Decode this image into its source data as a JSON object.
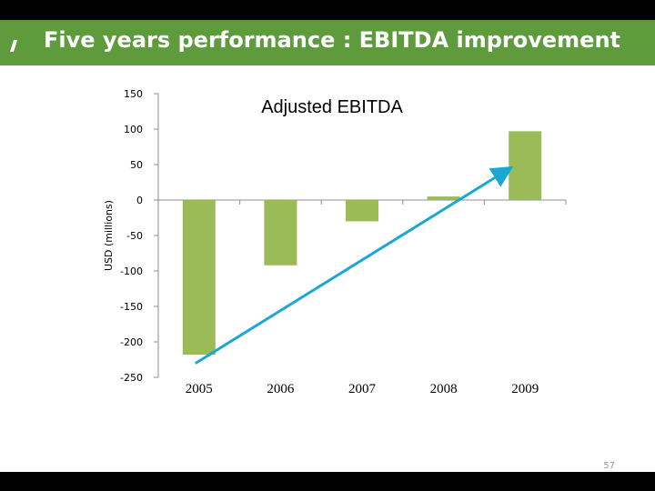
{
  "slide": {
    "title": "Five years performance : EBITDA improvement",
    "page_number": "57"
  },
  "colors": {
    "title_bar": "#5e9b3c",
    "bar": "#9bbb59",
    "trend_arrow": "#1aa7d6",
    "axis": "#8c8c8c",
    "text": "#000000"
  },
  "chart_data": {
    "type": "bar",
    "title": "Adjusted EBITDA",
    "ylabel": "USD (millions)",
    "xlabel": "",
    "categories": [
      "2005",
      "2006",
      "2007",
      "2008",
      "2009"
    ],
    "values": [
      -218,
      -92,
      -30,
      5,
      97
    ],
    "ylim": [
      -250,
      150
    ],
    "yticks": [
      150,
      100,
      50,
      0,
      -50,
      -100,
      -150,
      -200,
      -250
    ],
    "grid": false,
    "legend": "none",
    "annotations": [
      {
        "type": "trend-arrow",
        "from": {
          "category": "2005",
          "value": -220
        },
        "to": {
          "category": "2009",
          "value": 50
        }
      }
    ]
  }
}
